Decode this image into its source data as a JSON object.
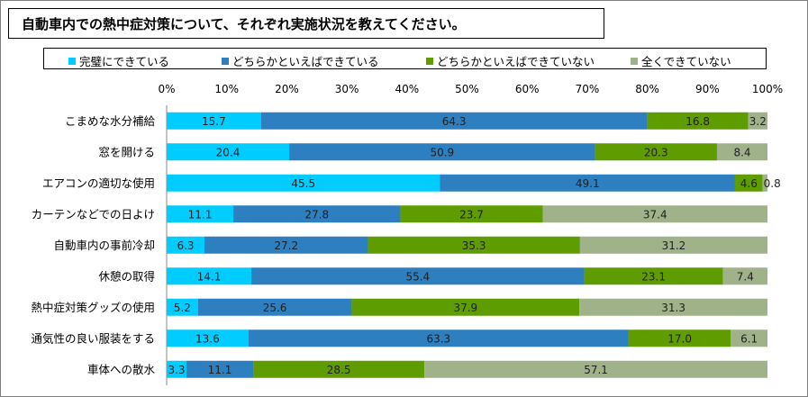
{
  "title": "自動車内での熱中症対策について、それぞれ実施状況を教えてください。",
  "colors": {
    "complete": "#00ccff",
    "somewhat_yes": "#2e7fbf",
    "somewhat_no": "#5f9c00",
    "not_at_all": "#9fb28a"
  },
  "chart_data": {
    "type": "bar",
    "orientation": "horizontal-stacked-100",
    "title": "自動車内での熱中症対策について、それぞれ実施状況を教えてください。",
    "xlim": [
      0,
      100
    ],
    "x_ticks": [
      "0%",
      "10%",
      "20%",
      "30%",
      "40%",
      "50%",
      "60%",
      "70%",
      "80%",
      "90%",
      "100%"
    ],
    "legend_position": "top",
    "categories": [
      "こまめな水分補給",
      "窓を開ける",
      "エアコンの適切な使用",
      "カーテンなどでの日よけ",
      "自動車内の事前冷却",
      "休憩の取得",
      "熱中症対策グッズの使用",
      "通気性の良い服装をする",
      "車体への散水"
    ],
    "series": [
      {
        "name": "完璧にできている",
        "color": "#00ccff",
        "values": [
          15.7,
          20.4,
          45.5,
          11.1,
          6.3,
          14.1,
          5.2,
          13.6,
          3.3
        ]
      },
      {
        "name": "どちらかといえばできている",
        "color": "#2e7fbf",
        "values": [
          64.3,
          50.9,
          49.1,
          27.8,
          27.2,
          55.4,
          25.6,
          63.3,
          11.1
        ]
      },
      {
        "name": "どちらかといえばできていない",
        "color": "#5f9c00",
        "values": [
          16.8,
          20.3,
          4.6,
          23.7,
          35.3,
          23.1,
          37.9,
          17.0,
          28.5
        ]
      },
      {
        "name": "全くできていない",
        "color": "#9fb28a",
        "values": [
          3.2,
          8.4,
          0.8,
          37.4,
          31.2,
          7.4,
          31.3,
          6.1,
          57.1
        ]
      }
    ],
    "data_labels": [
      [
        "15.7",
        "64.3",
        "16.8",
        "3.2"
      ],
      [
        "20.4",
        "50.9",
        "20.3",
        "8.4"
      ],
      [
        "45.5",
        "49.1",
        "4.6",
        "0.8"
      ],
      [
        "11.1",
        "27.8",
        "23.7",
        "37.4"
      ],
      [
        "6.3",
        "27.2",
        "35.3",
        "31.2"
      ],
      [
        "14.1",
        "55.4",
        "23.1",
        "7.4"
      ],
      [
        "5.2",
        "25.6",
        "37.9",
        "31.3"
      ],
      [
        "13.6",
        "63.3",
        "17.0",
        "6.1"
      ],
      [
        "3.3",
        "11.1",
        "28.5",
        "57.1"
      ]
    ]
  }
}
